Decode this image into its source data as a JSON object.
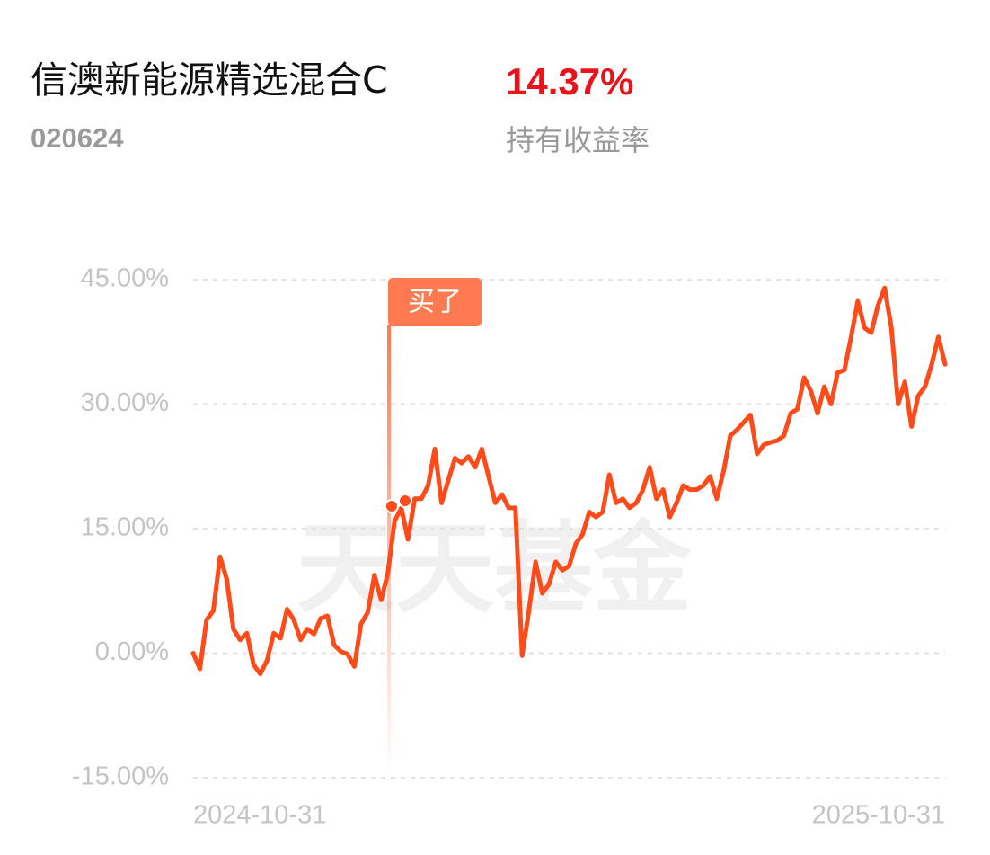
{
  "header": {
    "title": "信澳新能源精选混合C",
    "code": "020624",
    "return": "14.37%",
    "return_label": "持有收益率"
  },
  "chart_data": {
    "type": "line",
    "annotation": "买了",
    "watermark": "天天基金",
    "color": "#ff4a1a",
    "grid": true,
    "ylim": [
      -15,
      45
    ],
    "yticks": [
      {
        "value": -15,
        "label": "-15.00%"
      },
      {
        "value": 0,
        "label": "0.00%"
      },
      {
        "value": 15,
        "label": "15.00%"
      },
      {
        "value": 30,
        "label": "30.00%"
      },
      {
        "value": 45,
        "label": "45.00%"
      }
    ],
    "categories": [
      "2024-10-31",
      null,
      null,
      null,
      null,
      null,
      null,
      null,
      null,
      null,
      null,
      null,
      null,
      null,
      null,
      null,
      null,
      null,
      null,
      null,
      null,
      null,
      null,
      null,
      null,
      null,
      null,
      null,
      null,
      null,
      null,
      null,
      null,
      null,
      null,
      null,
      null,
      null,
      null,
      null,
      null,
      null,
      null,
      null,
      null,
      null,
      null,
      null,
      null,
      null,
      null,
      null,
      null,
      null,
      null,
      null,
      null,
      null,
      null,
      null,
      null,
      null,
      null,
      null,
      null,
      null,
      null,
      null,
      null,
      null,
      null,
      null,
      null,
      null,
      null,
      null,
      null,
      null,
      null,
      null,
      null,
      null,
      null,
      null,
      null,
      null,
      null,
      null,
      null,
      null,
      null,
      null,
      null,
      null,
      null,
      null,
      null,
      null,
      null,
      null,
      null,
      null,
      null,
      null,
      null,
      null,
      null,
      null,
      null,
      null,
      null,
      null,
      "2025-10-31"
    ],
    "values": [
      0,
      -1.9,
      4.0,
      5.1,
      11.6,
      8.9,
      2.9,
      1.6,
      2.4,
      -1.4,
      -2.5,
      -0.9,
      2.4,
      1.8,
      5.3,
      4.0,
      1.6,
      2.9,
      2.3,
      4.2,
      4.5,
      1.0,
      0.2,
      -0.1,
      -1.6,
      3.5,
      4.9,
      9.4,
      6.4,
      9.6,
      15.9,
      17.5,
      13.7,
      18.6,
      18.6,
      20.2,
      24.6,
      18.1,
      20.8,
      23.5,
      22.9,
      23.7,
      22.4,
      24.6,
      21.3,
      18.1,
      19.1,
      17.5,
      17.5,
      -0.3,
      5.1,
      11.0,
      7.2,
      8.3,
      11.0,
      10.0,
      10.5,
      13.2,
      14.3,
      17.0,
      16.4,
      17.0,
      21.5,
      18.1,
      18.6,
      17.5,
      18.1,
      19.7,
      22.4,
      18.6,
      19.7,
      16.4,
      18.1,
      20.2,
      19.7,
      19.7,
      20.2,
      21.3,
      18.6,
      21.9,
      26.2,
      26.9,
      27.8,
      28.7,
      24.0,
      25.1,
      25.4,
      25.6,
      26.2,
      28.9,
      29.4,
      33.2,
      31.6,
      28.9,
      32.1,
      30.0,
      33.8,
      34.1,
      38.1,
      42.4,
      39.2,
      38.6,
      41.9,
      44.0,
      39.2,
      30.0,
      32.7,
      27.3,
      31.0,
      32.1,
      34.8,
      38.1,
      34.8
    ]
  }
}
